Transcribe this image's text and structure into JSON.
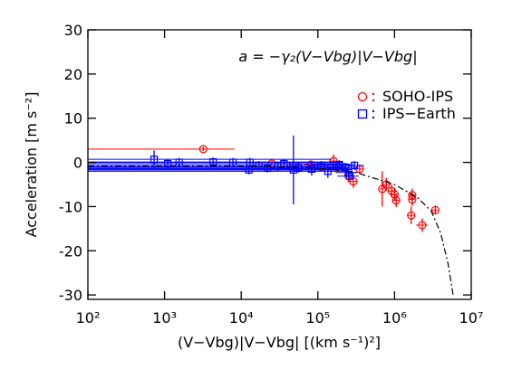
{
  "chart_data": {
    "type": "scatter",
    "annotation": "a = −γ₂(V−Vbg)|V−Vbg|",
    "xlabel": "(V−Vbg)|V−Vbg| [(km s⁻¹)²]",
    "ylabel": "Acceleration [m s⁻²]",
    "xscale": "log",
    "xlim": [
      100,
      10000000
    ],
    "xticks": [
      {
        "value": 100,
        "label": "10²"
      },
      {
        "value": 1000,
        "label": "10³"
      },
      {
        "value": 10000,
        "label": "10⁴"
      },
      {
        "value": 100000,
        "label": "10⁵"
      },
      {
        "value": 1000000,
        "label": "10⁶"
      },
      {
        "value": 10000000,
        "label": "10⁷"
      }
    ],
    "ylim": [
      -31,
      30
    ],
    "yticks": [
      -30,
      -20,
      -10,
      0,
      10,
      20,
      30
    ],
    "series": [
      {
        "name": "SOHO-IPS",
        "color": "#ff0000",
        "marker": "circle",
        "x": [
          3200,
          25000,
          40000,
          56000,
          81000,
          110000,
          160000,
          180000,
          250000,
          290000,
          350000,
          690000,
          780000,
          920000,
          1000000,
          1050000,
          1700000,
          1700000,
          1650000,
          2300000,
          3400000
        ],
        "values": [
          3,
          -0.3,
          -0.7,
          -1,
          -0.5,
          -1,
          0.3,
          -1,
          -3,
          -4.3,
          -1.5,
          -6,
          -5,
          -6.5,
          -7.2,
          -8.6,
          -7.4,
          -8.4,
          -12,
          -14.2,
          -10.8
        ],
        "xerr": [
          5000,
          5000,
          8000,
          10000,
          15000,
          20000,
          20000,
          30000,
          30000,
          40000,
          50000,
          50000,
          80000,
          100000,
          100000,
          100000,
          150000,
          150000,
          200000,
          400000,
          300000
        ],
        "yerr": [
          0.5,
          0.5,
          0.5,
          0.5,
          0.5,
          0.8,
          1.5,
          1,
          1.5,
          1.5,
          1,
          4,
          1.5,
          1.5,
          1.5,
          1.5,
          1.5,
          1.5,
          2,
          1.5,
          1
        ]
      },
      {
        "name": "IPS−Earth",
        "color": "#0000ff",
        "marker": "square",
        "x": [
          730,
          1100,
          1550,
          4300,
          7800,
          12600,
          13000,
          17000,
          22000,
          30000,
          36000,
          47000,
          48000,
          56000,
          83000,
          110000,
          135000,
          190000,
          230000,
          250000,
          260000,
          300000
        ],
        "values": [
          0.7,
          -0.3,
          0,
          0.1,
          0,
          -1.7,
          0,
          -0.7,
          -1.3,
          -1,
          -0.3,
          -1,
          -1.7,
          -1.3,
          -1.5,
          -0.7,
          -2,
          -0.5,
          -1.1,
          -2.3,
          -3.1,
          -0.7
        ],
        "xerr": [
          150000,
          200000,
          200000,
          200000,
          200000,
          200000,
          150000,
          200000,
          200000,
          200000,
          200000,
          150000,
          200000,
          200000,
          200000,
          150000,
          150000,
          100000,
          100000,
          80000,
          80000,
          100000
        ],
        "yerr": [
          2,
          1,
          1,
          1,
          1,
          1,
          1,
          1,
          1,
          1,
          1,
          1,
          7.8,
          1,
          1.5,
          1,
          1.5,
          1,
          1,
          1,
          1,
          1
        ]
      }
    ],
    "fit": {
      "color": "#000000",
      "x": [
        100,
        10000,
        100000,
        300000,
        1000000,
        2000000,
        3000000,
        4000000,
        5000000,
        5800000
      ],
      "values": [
        -0.8,
        -0.8,
        -1.3,
        -2.2,
        -5,
        -8,
        -11,
        -16,
        -23,
        -30
      ]
    }
  }
}
